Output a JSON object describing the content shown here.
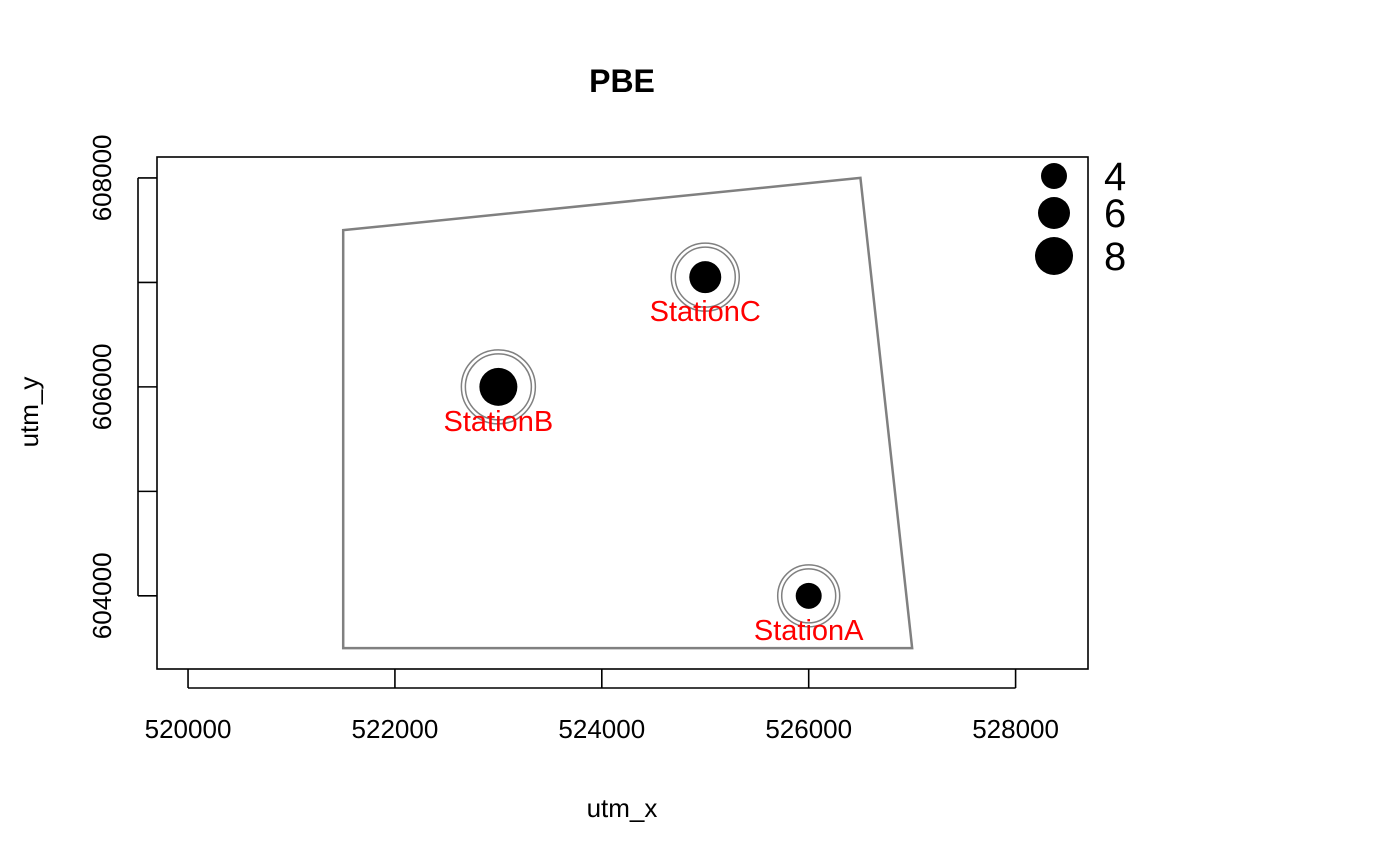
{
  "chart_data": {
    "type": "scatter",
    "title": "PBE",
    "xlabel": "utm_x",
    "ylabel": "utm_y",
    "xlim": [
      519700,
      528700
    ],
    "ylim": [
      603300,
      608200
    ],
    "x_ticks": [
      520000,
      522000,
      524000,
      526000,
      528000
    ],
    "x_tick_labels": [
      "520000",
      "522000",
      "524000",
      "526000",
      "528000"
    ],
    "y_ticks": [
      604000,
      605000,
      606000,
      607000,
      608000
    ],
    "y_tick_labels": [
      "604000",
      "",
      "606000",
      "",
      "608000"
    ],
    "grid": false,
    "boundary": {
      "color": "#808080",
      "points": [
        {
          "x": 521500,
          "y": 603500
        },
        {
          "x": 521500,
          "y": 607500
        },
        {
          "x": 526500,
          "y": 608000
        },
        {
          "x": 527000,
          "y": 603500
        }
      ]
    },
    "stations": [
      {
        "label": "StationA",
        "x": 526000,
        "y": 604000,
        "value": 4
      },
      {
        "label": "StationB",
        "x": 523000,
        "y": 606000,
        "value": 8
      },
      {
        "label": "StationC",
        "x": 525000,
        "y": 607050,
        "value": 6
      }
    ],
    "point_color": "#000000",
    "label_color": "#ff0000",
    "ring_color": "#808080",
    "legend": {
      "position": "top-right",
      "entries": [
        {
          "label": "4",
          "value": 4
        },
        {
          "label": "6",
          "value": 6
        },
        {
          "label": "8",
          "value": 8
        }
      ]
    }
  }
}
